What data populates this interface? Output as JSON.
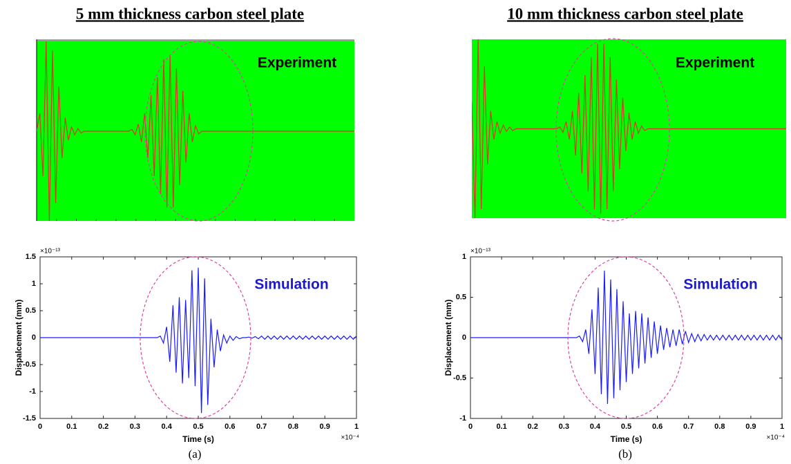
{
  "chart_data": [
    {
      "type": "line",
      "title": "5 mm thickness carbon steel plate",
      "annotation": "Experiment",
      "background": "#00ff00",
      "color": "#d23c28",
      "xlim": [
        0,
        1
      ],
      "ylim": [
        -1,
        1
      ],
      "x": [
        0,
        0.01,
        0.02,
        0.03,
        0.04,
        0.05,
        0.06,
        0.07,
        0.08,
        0.09,
        0.1,
        0.11,
        0.12,
        0.13,
        0.14,
        0.15,
        0.16,
        0.17,
        0.18,
        0.19,
        0.2,
        0.21,
        0.22,
        0.23,
        0.24,
        0.25,
        0.26,
        0.27,
        0.28,
        0.29,
        0.3,
        0.31,
        0.32,
        0.33,
        0.34,
        0.35,
        0.36,
        0.37,
        0.38,
        0.39,
        0.4,
        0.41,
        0.42,
        0.43,
        0.44,
        0.45,
        0.46,
        0.47,
        0.48,
        0.49,
        0.5,
        0.51,
        0.52,
        0.53,
        0.54,
        0.55,
        0.56,
        0.57,
        0.58,
        0.59,
        0.6,
        0.61,
        0.62,
        0.63,
        0.64,
        0.65,
        0.66,
        0.67,
        0.68,
        0.69,
        0.7,
        0.71,
        0.72,
        0.73,
        0.74,
        0.75,
        0.76,
        0.77,
        0.78,
        0.79,
        0.8,
        0.81,
        0.82,
        0.83,
        0.84,
        0.85,
        0.86,
        0.87,
        0.88,
        0.89,
        0.9,
        0.91,
        0.92,
        0.93,
        0.94,
        0.95,
        0.96,
        0.97,
        0.98,
        0.99,
        1
      ],
      "values": [
        0,
        0.2,
        -0.5,
        1,
        -1,
        0.9,
        -0.8,
        0.5,
        -0.3,
        0.15,
        -0.1,
        0.05,
        -0.04,
        0.03,
        -0.02,
        0,
        0,
        0,
        0,
        0,
        0,
        0,
        0,
        0,
        0,
        0,
        0,
        0,
        0,
        0,
        0.02,
        -0.04,
        0.08,
        -0.12,
        0.2,
        -0.3,
        0.4,
        -0.5,
        0.6,
        -0.7,
        0.8,
        -0.85,
        0.85,
        -0.85,
        0.7,
        -0.6,
        0.45,
        -0.35,
        0.2,
        -0.12,
        0.06,
        -0.03,
        0,
        0,
        0,
        0,
        0,
        0,
        0,
        0,
        0,
        0,
        0,
        0,
        0,
        0,
        0,
        0,
        0,
        0,
        0,
        0,
        0,
        0,
        0,
        0,
        0,
        0,
        0,
        0,
        0,
        0,
        0,
        0,
        0,
        0,
        0,
        0,
        0,
        0,
        0,
        0,
        0,
        0,
        0,
        0,
        0,
        0,
        0,
        0,
        0
      ]
    },
    {
      "type": "line",
      "annotation": "Simulation",
      "color": "#1a1aff",
      "caption": "(a)",
      "xlabel": "Time (s)",
      "ylabel": "Dispalcement (mm)",
      "x_exponent": "×10⁻⁴",
      "y_exponent": "×10⁻¹³",
      "xlim": [
        0,
        1
      ],
      "ylim": [
        -1.5,
        1.5
      ],
      "xticks": [
        0,
        0.1,
        0.2,
        0.3,
        0.4,
        0.5,
        0.6,
        0.7,
        0.8,
        0.9,
        1
      ],
      "yticks": [
        -1.5,
        -1,
        -0.5,
        0,
        0.5,
        1,
        1.5
      ],
      "x": [
        0,
        0.01,
        0.02,
        0.03,
        0.04,
        0.05,
        0.06,
        0.07,
        0.08,
        0.09,
        0.1,
        0.11,
        0.12,
        0.13,
        0.14,
        0.15,
        0.16,
        0.17,
        0.18,
        0.19,
        0.2,
        0.21,
        0.22,
        0.23,
        0.24,
        0.25,
        0.26,
        0.27,
        0.28,
        0.29,
        0.3,
        0.31,
        0.32,
        0.33,
        0.34,
        0.35,
        0.36,
        0.37,
        0.38,
        0.39,
        0.4,
        0.41,
        0.42,
        0.43,
        0.44,
        0.45,
        0.46,
        0.47,
        0.48,
        0.49,
        0.5,
        0.51,
        0.52,
        0.53,
        0.54,
        0.55,
        0.56,
        0.57,
        0.58,
        0.59,
        0.6,
        0.61,
        0.62,
        0.63,
        0.64,
        0.65,
        0.66,
        0.67,
        0.68,
        0.69,
        0.7,
        0.71,
        0.72,
        0.73,
        0.74,
        0.75,
        0.76,
        0.77,
        0.78,
        0.79,
        0.8,
        0.81,
        0.82,
        0.83,
        0.84,
        0.85,
        0.86,
        0.87,
        0.88,
        0.89,
        0.9,
        0.91,
        0.92,
        0.93,
        0.94,
        0.95,
        0.96,
        0.97,
        0.98,
        0.99,
        1
      ],
      "values": [
        0,
        0,
        0,
        0,
        0,
        0,
        0,
        0,
        0,
        0,
        0,
        0,
        0,
        0,
        0,
        0,
        0,
        0,
        0,
        0,
        0,
        0,
        0,
        0,
        0,
        0,
        0,
        0,
        0,
        0,
        0,
        0,
        0,
        0,
        0,
        0,
        0,
        0,
        0.03,
        -0.1,
        0.2,
        -0.45,
        0.6,
        -0.65,
        0.75,
        -0.85,
        0.7,
        -0.75,
        1.25,
        -0.9,
        1.3,
        -1.4,
        1.1,
        -1.25,
        0.35,
        -0.55,
        0.15,
        -0.25,
        0.05,
        -0.1,
        0.03,
        -0.05,
        0.02,
        -0.02,
        0,
        0,
        0.01,
        -0.01,
        0.02,
        -0.02,
        0.03,
        -0.03,
        0.03,
        -0.03,
        0.03,
        -0.03,
        0.03,
        -0.03,
        0.03,
        -0.03,
        0.03,
        -0.03,
        0.03,
        -0.03,
        0.03,
        -0.03,
        0.03,
        -0.03,
        0.03,
        -0.03,
        0.03,
        -0.03,
        0.03,
        -0.03,
        0.03,
        -0.03,
        0.03,
        -0.03,
        0.03,
        -0.03,
        0.03
      ]
    },
    {
      "type": "line",
      "title": "10 mm thickness carbon steel plate",
      "annotation": "Experiment",
      "background": "#00ff00",
      "color": "#d23c28",
      "xlim": [
        0,
        1
      ],
      "ylim": [
        -1,
        1
      ],
      "x": [
        0,
        0.01,
        0.02,
        0.03,
        0.04,
        0.05,
        0.06,
        0.07,
        0.08,
        0.09,
        0.1,
        0.11,
        0.12,
        0.13,
        0.14,
        0.15,
        0.16,
        0.17,
        0.18,
        0.19,
        0.2,
        0.21,
        0.22,
        0.23,
        0.24,
        0.25,
        0.26,
        0.27,
        0.28,
        0.29,
        0.3,
        0.31,
        0.32,
        0.33,
        0.34,
        0.35,
        0.36,
        0.37,
        0.38,
        0.39,
        0.4,
        0.41,
        0.42,
        0.43,
        0.44,
        0.45,
        0.46,
        0.47,
        0.48,
        0.49,
        0.5,
        0.51,
        0.52,
        0.53,
        0.54,
        0.55,
        0.56,
        0.57,
        0.58,
        0.59,
        0.6,
        0.61,
        0.62,
        0.63,
        0.64,
        0.65,
        0.66,
        0.67,
        0.68,
        0.69,
        0.7,
        0.71,
        0.72,
        0.73,
        0.74,
        0.75,
        0.76,
        0.77,
        0.78,
        0.79,
        0.8,
        0.81,
        0.82,
        0.83,
        0.84,
        0.85,
        0.86,
        0.87,
        0.88,
        0.89,
        0.9,
        0.91,
        0.92,
        0.93,
        0.94,
        0.95,
        0.96,
        0.97,
        0.98,
        0.99,
        1
      ],
      "values": [
        0.3,
        -1,
        1,
        -0.9,
        0.7,
        -0.4,
        0.2,
        -0.12,
        0.08,
        -0.05,
        0.04,
        -0.03,
        0.02,
        -0.02,
        0,
        0,
        0,
        0,
        0,
        0,
        0,
        0,
        0,
        0,
        0,
        0,
        0,
        0,
        0.02,
        -0.04,
        0.08,
        -0.12,
        0.2,
        -0.3,
        0.4,
        -0.5,
        0.6,
        -0.7,
        0.8,
        -0.9,
        0.95,
        -0.95,
        0.95,
        -0.9,
        0.8,
        -0.7,
        0.55,
        -0.45,
        0.35,
        -0.25,
        0.18,
        -0.12,
        0.08,
        -0.05,
        0.03,
        -0.02,
        0,
        0,
        0,
        0,
        0,
        0,
        0,
        0,
        0,
        0,
        0,
        0,
        0,
        0,
        0,
        0,
        0,
        0,
        0,
        0,
        0,
        0,
        0,
        0,
        0,
        0,
        0,
        0,
        0,
        0,
        0,
        0,
        0,
        0,
        0,
        0,
        0,
        0,
        0,
        0,
        0,
        0,
        0,
        0,
        0
      ]
    },
    {
      "type": "line",
      "annotation": "Simulation",
      "color": "#1a1aff",
      "caption": "(b)",
      "xlabel": "Time (s)",
      "ylabel": "Displacement (mm)",
      "x_exponent": "×10⁻⁴",
      "y_exponent": "×10⁻¹³",
      "xlim": [
        0,
        1
      ],
      "ylim": [
        -1,
        1
      ],
      "xticks": [
        0,
        0.1,
        0.2,
        0.3,
        0.4,
        0.5,
        0.6,
        0.7,
        0.8,
        0.9,
        1
      ],
      "yticks": [
        -1,
        -0.5,
        0,
        0.5,
        1
      ],
      "x": [
        0,
        0.01,
        0.02,
        0.03,
        0.04,
        0.05,
        0.06,
        0.07,
        0.08,
        0.09,
        0.1,
        0.11,
        0.12,
        0.13,
        0.14,
        0.15,
        0.16,
        0.17,
        0.18,
        0.19,
        0.2,
        0.21,
        0.22,
        0.23,
        0.24,
        0.25,
        0.26,
        0.27,
        0.28,
        0.29,
        0.3,
        0.31,
        0.32,
        0.33,
        0.34,
        0.35,
        0.36,
        0.37,
        0.38,
        0.39,
        0.4,
        0.41,
        0.42,
        0.43,
        0.44,
        0.45,
        0.46,
        0.47,
        0.48,
        0.49,
        0.5,
        0.51,
        0.52,
        0.53,
        0.54,
        0.55,
        0.56,
        0.57,
        0.58,
        0.59,
        0.6,
        0.61,
        0.62,
        0.63,
        0.64,
        0.65,
        0.66,
        0.67,
        0.68,
        0.69,
        0.7,
        0.71,
        0.72,
        0.73,
        0.74,
        0.75,
        0.76,
        0.77,
        0.78,
        0.79,
        0.8,
        0.81,
        0.82,
        0.83,
        0.84,
        0.85,
        0.86,
        0.87,
        0.88,
        0.89,
        0.9,
        0.91,
        0.92,
        0.93,
        0.94,
        0.95,
        0.96,
        0.97,
        0.98,
        0.99,
        1
      ],
      "values": [
        0,
        0,
        0,
        0,
        0,
        0,
        0,
        0,
        0,
        0,
        0,
        0,
        0,
        0,
        0,
        0,
        0,
        0,
        0,
        0,
        0,
        0,
        0,
        0,
        0,
        0,
        0,
        0,
        0,
        0,
        0,
        0,
        0,
        0,
        0,
        0.02,
        -0.05,
        0.1,
        -0.2,
        0.35,
        -0.45,
        0.62,
        -0.7,
        0.83,
        -0.82,
        0.72,
        -0.75,
        0.6,
        -0.65,
        0.45,
        -0.55,
        0.3,
        -0.45,
        0.33,
        -0.38,
        0.3,
        -0.32,
        0.25,
        -0.25,
        0.2,
        -0.2,
        0.15,
        -0.15,
        0.12,
        -0.12,
        0.1,
        -0.1,
        0.1,
        -0.08,
        0.08,
        -0.06,
        0.05,
        -0.05,
        0.04,
        -0.04,
        0.04,
        -0.03,
        0.03,
        -0.03,
        0.03,
        -0.03,
        0.03,
        -0.03,
        0.03,
        -0.03,
        0.03,
        -0.03,
        0.03,
        -0.03,
        0.03,
        -0.03,
        0.03,
        -0.03,
        0.03,
        -0.03,
        0.03,
        -0.03,
        0.03,
        -0.03,
        0.03,
        -0.03
      ]
    }
  ]
}
